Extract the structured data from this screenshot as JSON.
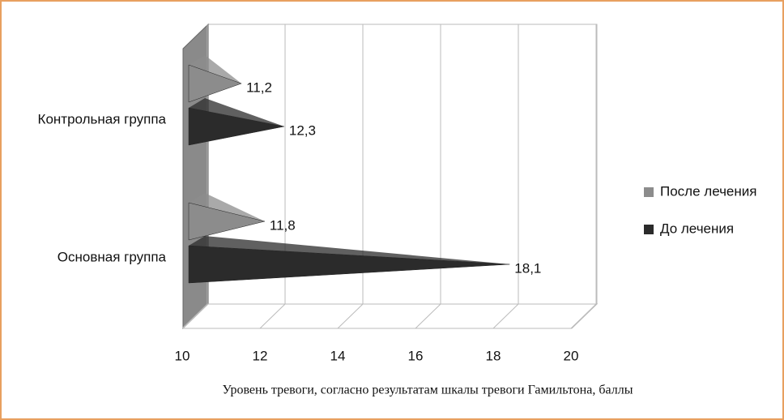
{
  "chart_data": {
    "type": "bar3d",
    "categories": [
      "Контрольная группа",
      "Основная группа"
    ],
    "series": [
      {
        "name": "После лечения",
        "color": "#8c8c8c",
        "values": [
          11.2,
          11.8
        ],
        "value_labels": [
          "11,2",
          "11,8"
        ]
      },
      {
        "name": "До лечения",
        "color": "#2b2b2b",
        "values": [
          12.3,
          18.1
        ],
        "value_labels": [
          "12,3",
          "18,1"
        ]
      }
    ],
    "xlim": [
      10,
      20
    ],
    "xticks": [
      10,
      12,
      14,
      16,
      18,
      20
    ],
    "xlabel": "Уровень тревоги, согласно результатам шкалы тревоги Гамильтона, баллы",
    "grid": true,
    "legend": "right"
  }
}
